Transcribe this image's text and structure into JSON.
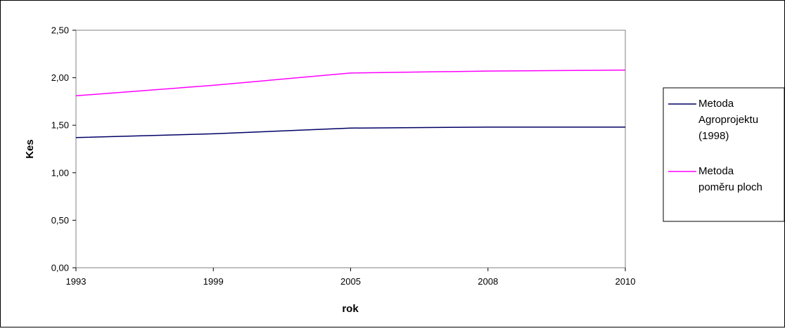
{
  "chart_data": {
    "type": "line",
    "x": [
      "1993",
      "1999",
      "2005",
      "2008",
      "2010"
    ],
    "xlabel": "rok",
    "ylabel": "Kes",
    "ylim": [
      0,
      2.5
    ],
    "yticks": [
      "0,00",
      "0,50",
      "1,00",
      "1,50",
      "2,00",
      "2,50"
    ],
    "grid": false,
    "legend_position": "right",
    "series": [
      {
        "name": "Metoda Agroprojektu (1998)",
        "legend_lines": [
          "Metoda",
          "Agroprojektu",
          "(1998)"
        ],
        "color": "#000066",
        "values": [
          1.37,
          1.41,
          1.47,
          1.48,
          1.48
        ]
      },
      {
        "name": "Metoda poměru ploch",
        "legend_lines": [
          "Metoda",
          "poměru ploch"
        ],
        "color": "#ff00ff",
        "values": [
          1.81,
          1.92,
          2.05,
          2.07,
          2.08
        ]
      }
    ]
  }
}
